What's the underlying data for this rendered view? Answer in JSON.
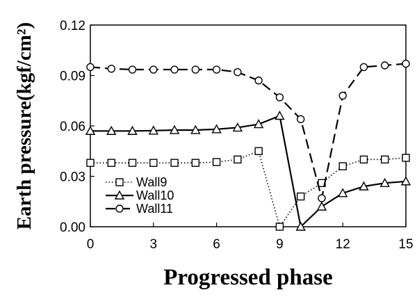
{
  "chart_data": {
    "type": "line",
    "title": "",
    "xlabel": "Progressed phase",
    "ylabel": "Earth pressure(kgf/cm²)",
    "xlim": [
      0,
      15
    ],
    "ylim": [
      0,
      0.12
    ],
    "x_ticks": [
      "0",
      "3",
      "6",
      "9",
      "12",
      "15"
    ],
    "y_ticks": [
      "0.00",
      "0.03",
      "0.06",
      "0.09",
      "0.12"
    ],
    "grid": false,
    "legend": "bottom-left",
    "series": [
      {
        "name": "Wall9",
        "marker": "square",
        "line": "dotted",
        "x": [
          0,
          1,
          2,
          3,
          4,
          5,
          6,
          7,
          8,
          9,
          10,
          11,
          12,
          13,
          14,
          15
        ],
        "y": [
          0.038,
          0.038,
          0.038,
          0.038,
          0.038,
          0.038,
          0.0385,
          0.04,
          0.045,
          0.0,
          0.018,
          0.026,
          0.036,
          0.04,
          0.04,
          0.041
        ]
      },
      {
        "name": "Wall10",
        "marker": "triangle",
        "line": "solid",
        "x": [
          0,
          1,
          2,
          3,
          4,
          5,
          6,
          7,
          8,
          9,
          10,
          11,
          12,
          13,
          14,
          15
        ],
        "y": [
          0.057,
          0.057,
          0.057,
          0.0572,
          0.0575,
          0.0575,
          0.058,
          0.059,
          0.061,
          0.066,
          0.0,
          0.012,
          0.02,
          0.024,
          0.026,
          0.027
        ]
      },
      {
        "name": "Wall11",
        "marker": "circle",
        "line": "dashed",
        "x": [
          0,
          1,
          2,
          3,
          4,
          5,
          6,
          7,
          8,
          9,
          10,
          11,
          12,
          13,
          14,
          15
        ],
        "y": [
          0.095,
          0.094,
          0.0935,
          0.0935,
          0.0935,
          0.0935,
          0.0935,
          0.092,
          0.087,
          0.077,
          0.064,
          0.017,
          0.078,
          0.095,
          0.096,
          0.097
        ]
      }
    ]
  }
}
